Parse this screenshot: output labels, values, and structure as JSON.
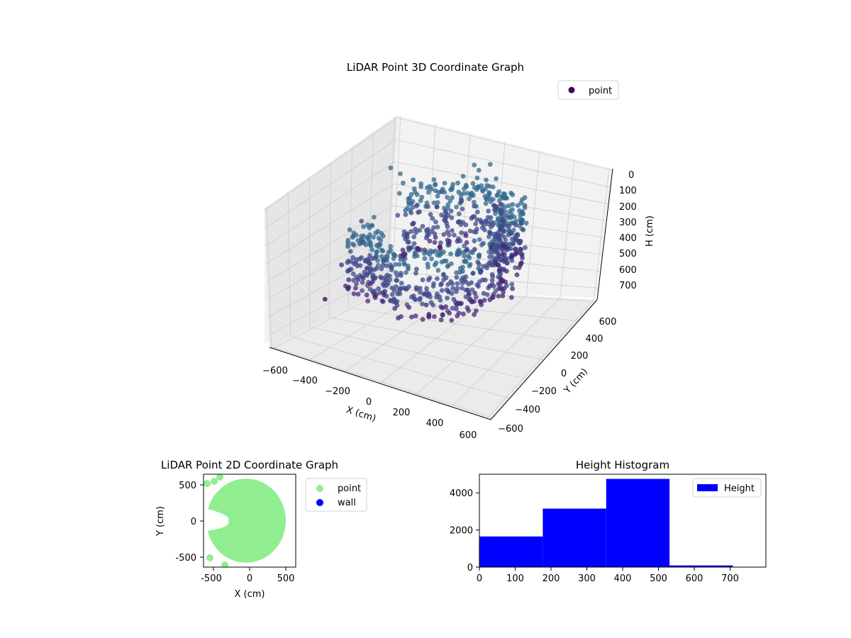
{
  "colors": {
    "scatter_3d": [
      "#440154",
      "#482878",
      "#3e4989",
      "#31688e",
      "#26828e",
      "#1f9e89",
      "#35b779"
    ],
    "legend_3d_marker": "#440154",
    "point_2d": "#90ee90",
    "wall_2d": "#0000ff",
    "hist_bar": "#0000ff",
    "axes": "#000000",
    "grid": "#cccccc"
  },
  "chart_data": [
    {
      "type": "scatter",
      "projection": "3d",
      "title": "LiDAR Point 3D Coordinate Graph",
      "xlabel": "X (cm)",
      "ylabel": "Y (cm)",
      "zlabel": "H (cm)",
      "xlim": [
        -650,
        650
      ],
      "ylim": [
        -650,
        650
      ],
      "zlim": [
        0,
        780
      ],
      "z_inverted": true,
      "x_ticks": [
        "−600",
        "−400",
        "−200",
        "0",
        "200",
        "400",
        "600"
      ],
      "y_ticks": [
        "−600",
        "−400",
        "−200",
        "0",
        "200",
        "400",
        "600"
      ],
      "z_ticks": [
        "0",
        "100",
        "200",
        "300",
        "400",
        "500",
        "600",
        "700"
      ],
      "legend": {
        "placement": "top-right",
        "entries": [
          "point"
        ]
      },
      "grid": true,
      "series": [
        {
          "name": "point",
          "shape": "ring-cloud",
          "ring_radius_range": [
            420,
            620
          ],
          "arc_degrees": [
            -150,
            150
          ],
          "height_range": [
            50,
            450
          ],
          "outliers": [
            {
              "x": -620,
              "y": 620,
              "h": 80
            },
            {
              "x": -560,
              "y": 620,
              "h": 110
            },
            {
              "x": -480,
              "y": 620,
              "h": 140
            },
            {
              "x": -420,
              "y": 600,
              "h": 170
            },
            {
              "x": -100,
              "y": 620,
              "h": 30
            },
            {
              "x": -60,
              "y": 600,
              "h": 50
            },
            {
              "x": 0,
              "y": 620,
              "h": 20
            },
            {
              "x": -620,
              "y": 300,
              "h": 300
            },
            {
              "x": -630,
              "y": 100,
              "h": 500
            },
            {
              "x": -630,
              "y": -80,
              "h": 650
            }
          ]
        }
      ]
    },
    {
      "type": "scatter",
      "title": "LiDAR Point 2D Coordinate Graph",
      "xlabel": "X (cm)",
      "ylabel": "Y (cm)",
      "xlim": [
        -650,
        650
      ],
      "ylim": [
        -650,
        650
      ],
      "x_ticks": [
        -500,
        0,
        500
      ],
      "y_ticks": [
        -500,
        0,
        500
      ],
      "legend": {
        "placement": "outside-right",
        "entries": [
          "point",
          "wall"
        ]
      },
      "series": [
        {
          "name": "point",
          "color": "#90ee90",
          "shape": "filled-disc",
          "center": [
            -50,
            0
          ],
          "radius": 560,
          "gap_left_at_y0": true
        },
        {
          "name": "wall",
          "color": "#0000ff",
          "points": []
        }
      ]
    },
    {
      "type": "bar",
      "title": "Height Histogram",
      "xlabel": "",
      "ylabel": "",
      "xlim": [
        0,
        800
      ],
      "ylim": [
        0,
        5000
      ],
      "x_ticks": [
        0,
        100,
        200,
        300,
        400,
        500,
        600,
        700
      ],
      "y_ticks": [
        0,
        2000,
        4000
      ],
      "legend": {
        "placement": "top-right",
        "entries": [
          "Height"
        ]
      },
      "series": [
        {
          "name": "Height",
          "bins": [
            {
              "x0": 0,
              "x1": 177,
              "count": 1650
            },
            {
              "x0": 177,
              "x1": 354,
              "count": 3150
            },
            {
              "x0": 354,
              "x1": 531,
              "count": 4750
            },
            {
              "x0": 531,
              "x1": 708,
              "count": 90
            }
          ]
        }
      ]
    }
  ]
}
